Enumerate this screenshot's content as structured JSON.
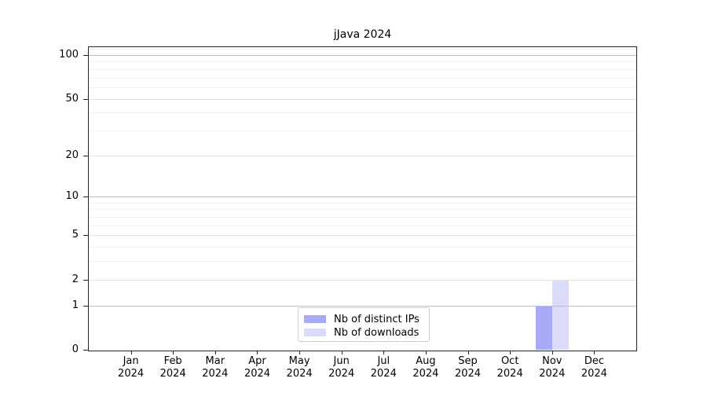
{
  "chart_data": {
    "type": "bar",
    "title": "jJava 2024",
    "categories": [
      "Jan 2024",
      "Feb 2024",
      "Mar 2024",
      "Apr 2024",
      "May 2024",
      "Jun 2024",
      "Jul 2024",
      "Aug 2024",
      "Sep 2024",
      "Oct 2024",
      "Nov 2024",
      "Dec 2024"
    ],
    "series": [
      {
        "name": "Nb of distinct IPs",
        "color": "#a9aaf7",
        "values": [
          0,
          0,
          0,
          0,
          0,
          0,
          0,
          0,
          0,
          0,
          1,
          0
        ]
      },
      {
        "name": "Nb of downloads",
        "color": "#dbdcf9",
        "values": [
          0,
          0,
          0,
          0,
          0,
          0,
          0,
          0,
          0,
          0,
          2,
          0
        ]
      }
    ],
    "yscale": "log1p",
    "ylim": [
      0,
      113
    ],
    "ytick_labels": [
      0,
      1,
      2,
      5,
      10,
      20,
      50,
      100
    ],
    "y_gridlines": {
      "strong": [
        1,
        10,
        100
      ],
      "medium": [
        2,
        5,
        20,
        50
      ],
      "weak": [
        3,
        4,
        6,
        7,
        8,
        9,
        30,
        40,
        60,
        70,
        80,
        90,
        110
      ]
    },
    "grid": true,
    "legend_position": "lower center",
    "colors": {
      "strong_grid": "#bdbdbd",
      "medium_grid": "#e1e1e1",
      "weak_grid": "#efefef",
      "spine": "#262626",
      "background": "#ffffff"
    }
  }
}
